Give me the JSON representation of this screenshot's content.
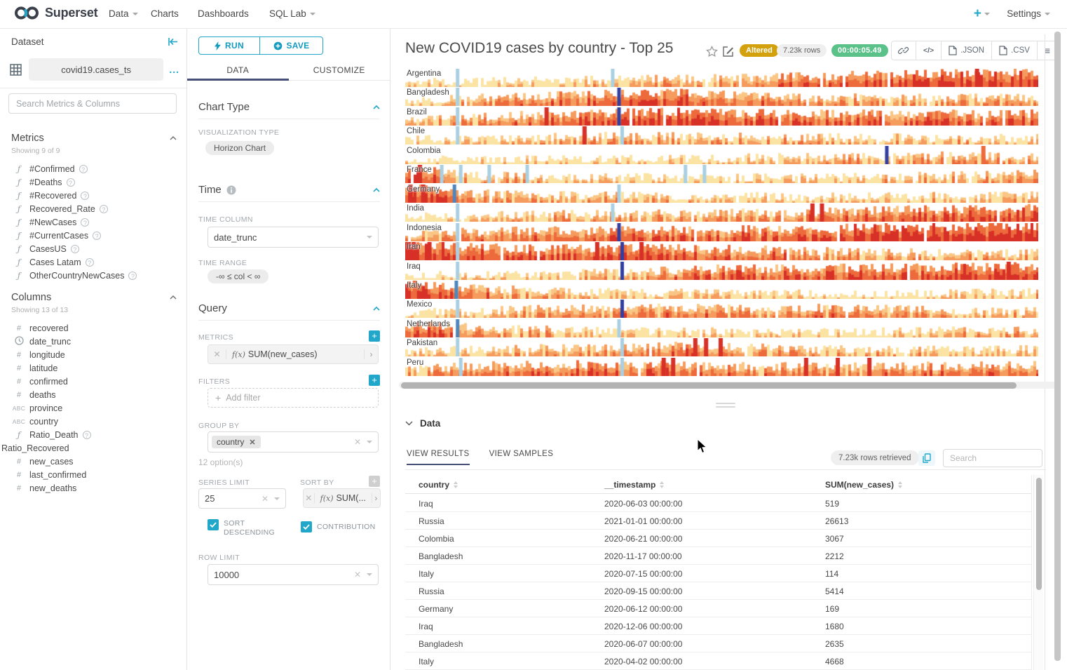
{
  "navbar": {
    "brand": "Superset",
    "items": [
      {
        "label": "Data",
        "caret": true
      },
      {
        "label": "Charts",
        "caret": false
      },
      {
        "label": "Dashboards",
        "caret": false
      },
      {
        "label": "SQL Lab",
        "caret": true
      }
    ],
    "plus_label": "+",
    "settings_label": "Settings"
  },
  "dataset_panel": {
    "title": "Dataset",
    "name": "covid19.cases_ts",
    "more_label": "...",
    "search_placeholder": "Search Metrics & Columns",
    "metrics": {
      "title": "Metrics",
      "showing": "Showing 9 of 9",
      "items": [
        "#Confirmed",
        "#Deaths",
        "#Recovered",
        "Recovered_Rate",
        "#NewCases",
        "#CurrentCases",
        "CasesUS",
        "Cases Latam",
        "OtherCountryNewCases"
      ]
    },
    "columns": {
      "title": "Columns",
      "showing": "Showing 13 of 13",
      "items": [
        {
          "name": "recovered",
          "type": "num"
        },
        {
          "name": "date_trunc",
          "type": "time"
        },
        {
          "name": "longitude",
          "type": "num"
        },
        {
          "name": "latitude",
          "type": "num"
        },
        {
          "name": "confirmed",
          "type": "num"
        },
        {
          "name": "deaths",
          "type": "num"
        },
        {
          "name": "province",
          "type": "text"
        },
        {
          "name": "country",
          "type": "text"
        },
        {
          "name": "Ratio_Death",
          "type": "func",
          "help": true
        },
        {
          "name": "Ratio_Recovered",
          "type": "none"
        },
        {
          "name": "new_cases",
          "type": "num"
        },
        {
          "name": "last_confirmed",
          "type": "num"
        },
        {
          "name": "new_deaths",
          "type": "num"
        }
      ]
    }
  },
  "controls": {
    "run_label": "RUN",
    "save_label": "SAVE",
    "tabs": [
      "DATA",
      "CUSTOMIZE"
    ],
    "chart_type": {
      "title": "Chart Type",
      "viz_label": "VISUALIZATION TYPE",
      "viz_value": "Horizon Chart"
    },
    "time": {
      "title": "Time",
      "col_label": "TIME COLUMN",
      "col_value": "date_trunc",
      "range_label": "TIME RANGE",
      "range_value": "-∞ ≤ col < ∞"
    },
    "query": {
      "title": "Query",
      "metrics_label": "METRICS",
      "metric_fx": "f(x)",
      "metric_value": "SUM(new_cases)",
      "filters_label": "FILTERS",
      "add_filter_label": "Add filter",
      "groupby_label": "GROUP BY",
      "groupby_tag": "country",
      "options_hint": "12 option(s)",
      "series_limit_label": "SERIES LIMIT",
      "series_limit_value": "25",
      "sortby_label": "SORT BY",
      "sortby_value": "SUM(...",
      "sort_desc_label": "SORT DESCENDING",
      "contribution_label": "CONTRIBUTION",
      "row_limit_label": "ROW LIMIT",
      "row_limit_value": "10000"
    }
  },
  "chart": {
    "title": "New COVID19 cases by country - Top 25",
    "badges": {
      "altered": "Altered",
      "rows": "7.23k rows",
      "duration": "00:00:05.49"
    },
    "toolbar": {
      "json_label": ".JSON",
      "csv_label": ".CSV",
      "code_label": "</>"
    }
  },
  "chart_data": {
    "type": "area",
    "subtype": "horizon",
    "title": "New COVID19 cases by country - Top 25",
    "palette": {
      "l0": "#FBE3A4",
      "l1": "#F9C686",
      "l2": "#F49B5D",
      "l3": "#EC6A3C",
      "l4": "#D73027",
      "lb": "#A9CFE3",
      "sb": "#4E86BE",
      "db": "#333FA0"
    },
    "countries": [
      {
        "name": "Argentina",
        "seed": 11,
        "profile": [
          [
            0,
            0.08
          ],
          [
            0.3,
            0.25
          ],
          [
            0.55,
            0.45
          ],
          [
            0.62,
            0.5
          ],
          [
            0.75,
            0.62
          ],
          [
            1,
            0.8
          ]
        ],
        "stripes": [
          [
            0.08,
            "lb"
          ],
          [
            0.325,
            "lb"
          ]
        ],
        "spikes": [
          [
            0.9,
            4
          ]
        ]
      },
      {
        "name": "Bangladesh",
        "seed": 22,
        "profile": [
          [
            0,
            0.15
          ],
          [
            0.15,
            0.42
          ],
          [
            0.3,
            0.6
          ],
          [
            0.45,
            0.65
          ],
          [
            0.55,
            0.5
          ],
          [
            0.65,
            0.35
          ],
          [
            0.8,
            0.3
          ],
          [
            1,
            0.35
          ]
        ],
        "stripes": [
          [
            0.08,
            "lb"
          ],
          [
            0.335,
            "db"
          ]
        ],
        "spikes": []
      },
      {
        "name": "Brazil",
        "seed": 33,
        "profile": [
          [
            0,
            0.15
          ],
          [
            0.2,
            0.5
          ],
          [
            0.4,
            0.7
          ],
          [
            0.6,
            0.6
          ],
          [
            0.8,
            0.55
          ],
          [
            1,
            0.6
          ]
        ],
        "stripes": [
          [
            0.08,
            "lb"
          ],
          [
            0.335,
            "db"
          ]
        ],
        "spikes": [
          [
            0.22,
            4
          ]
        ]
      },
      {
        "name": "Chile",
        "seed": 44,
        "profile": [
          [
            0,
            0.08
          ],
          [
            0.2,
            0.25
          ],
          [
            0.35,
            0.35
          ],
          [
            0.5,
            0.3
          ],
          [
            0.7,
            0.25
          ],
          [
            1,
            0.2
          ]
        ],
        "stripes": [
          [
            0.08,
            "lb"
          ],
          [
            0.34,
            "lb"
          ]
        ],
        "spikes": [
          [
            0.28,
            4
          ]
        ]
      },
      {
        "name": "Colombia",
        "seed": 55,
        "profile": [
          [
            0,
            0.05
          ],
          [
            0.3,
            0.1
          ],
          [
            0.5,
            0.18
          ],
          [
            0.7,
            0.3
          ],
          [
            0.85,
            0.35
          ],
          [
            1,
            0.3
          ]
        ],
        "stripes": [
          [
            0.758,
            "db"
          ]
        ],
        "spikes": [
          [
            0.91,
            3
          ]
        ]
      },
      {
        "name": "France",
        "seed": 66,
        "profile": [
          [
            0,
            0.7
          ],
          [
            0.05,
            0.55
          ],
          [
            0.1,
            0.3
          ],
          [
            0.3,
            0.18
          ],
          [
            0.6,
            0.12
          ],
          [
            0.9,
            0.3
          ],
          [
            1,
            0.5
          ]
        ],
        "stripes": [
          [
            0.055,
            "lb"
          ],
          [
            0.085,
            "lb"
          ],
          [
            0.13,
            "lb"
          ],
          [
            0.19,
            "lb"
          ],
          [
            0.44,
            "lb"
          ],
          [
            0.47,
            "lb"
          ]
        ],
        "spikes": [
          [
            0.02,
            4
          ]
        ]
      },
      {
        "name": "Germany",
        "seed": 77,
        "profile": [
          [
            0,
            0.85
          ],
          [
            0.06,
            0.68
          ],
          [
            0.1,
            0.45
          ],
          [
            0.2,
            0.3
          ],
          [
            0.4,
            0.22
          ],
          [
            0.7,
            0.18
          ],
          [
            1,
            0.25
          ]
        ],
        "stripes": [
          [
            0.075,
            "sb"
          ],
          [
            0.335,
            "lb"
          ]
        ],
        "spikes": [
          [
            0.005,
            4
          ],
          [
            0.025,
            4
          ]
        ]
      },
      {
        "name": "India",
        "seed": 88,
        "profile": [
          [
            0,
            0.08
          ],
          [
            0.25,
            0.3
          ],
          [
            0.45,
            0.35
          ],
          [
            0.6,
            0.4
          ],
          [
            0.75,
            0.55
          ],
          [
            0.9,
            0.65
          ],
          [
            1,
            0.75
          ]
        ],
        "stripes": [
          [
            0.08,
            "lb"
          ],
          [
            0.325,
            "lb"
          ]
        ],
        "spikes": [
          [
            0.64,
            4
          ],
          [
            0.655,
            4
          ]
        ]
      },
      {
        "name": "Indonesia",
        "seed": 99,
        "profile": [
          [
            0,
            0.3
          ],
          [
            0.2,
            0.5
          ],
          [
            0.4,
            0.55
          ],
          [
            0.6,
            0.6
          ],
          [
            0.8,
            0.75
          ],
          [
            1,
            0.85
          ]
        ],
        "stripes": [
          [
            0.08,
            "lb"
          ],
          [
            0.335,
            "db"
          ]
        ],
        "spikes": []
      },
      {
        "name": "Iran",
        "seed": 111,
        "profile": [
          [
            0,
            0.9
          ],
          [
            0.08,
            0.72
          ],
          [
            0.2,
            0.55
          ],
          [
            0.35,
            0.62
          ],
          [
            0.5,
            0.55
          ],
          [
            0.6,
            0.45
          ],
          [
            0.75,
            0.3
          ],
          [
            1,
            0.25
          ]
        ],
        "stripes": [
          [
            0.08,
            "lb"
          ],
          [
            0.34,
            "db"
          ]
        ],
        "spikes": [
          [
            0.01,
            4
          ],
          [
            0.035,
            4
          ],
          [
            0.3,
            4
          ],
          [
            0.37,
            4
          ]
        ]
      },
      {
        "name": "Iraq",
        "seed": 122,
        "profile": [
          [
            0,
            0.06
          ],
          [
            0.2,
            0.12
          ],
          [
            0.35,
            0.3
          ],
          [
            0.45,
            0.5
          ],
          [
            0.55,
            0.55
          ],
          [
            0.7,
            0.6
          ],
          [
            0.85,
            0.65
          ],
          [
            1,
            0.7
          ]
        ],
        "stripes": [
          [
            0.08,
            "lb"
          ],
          [
            0.34,
            "db"
          ]
        ],
        "spikes": [
          [
            0.95,
            4
          ]
        ]
      },
      {
        "name": "Italy",
        "seed": 133,
        "profile": [
          [
            0,
            0.75
          ],
          [
            0.08,
            0.6
          ],
          [
            0.15,
            0.4
          ],
          [
            0.3,
            0.25
          ],
          [
            0.5,
            0.15
          ],
          [
            0.8,
            0.1
          ],
          [
            1,
            0.22
          ]
        ],
        "stripes": [
          [
            0.078,
            "sb"
          ]
        ],
        "spikes": [
          [
            0.012,
            3
          ]
        ]
      },
      {
        "name": "Mexico",
        "seed": 144,
        "profile": [
          [
            0,
            0.1
          ],
          [
            0.2,
            0.35
          ],
          [
            0.4,
            0.45
          ],
          [
            0.55,
            0.4
          ],
          [
            0.7,
            0.45
          ],
          [
            0.85,
            0.3
          ],
          [
            1,
            0.2
          ]
        ],
        "stripes": [
          [
            0.08,
            "lb"
          ],
          [
            0.34,
            "db"
          ]
        ],
        "spikes": []
      },
      {
        "name": "Netherlands",
        "seed": 155,
        "profile": [
          [
            0,
            0.6
          ],
          [
            0.08,
            0.5
          ],
          [
            0.15,
            0.35
          ],
          [
            0.3,
            0.22
          ],
          [
            0.5,
            0.15
          ],
          [
            0.75,
            0.15
          ],
          [
            1,
            0.3
          ]
        ],
        "stripes": [
          [
            0.08,
            "sb"
          ],
          [
            0.335,
            "lb"
          ]
        ],
        "spikes": []
      },
      {
        "name": "Pakistan",
        "seed": 166,
        "profile": [
          [
            0,
            0.12
          ],
          [
            0.2,
            0.3
          ],
          [
            0.35,
            0.4
          ],
          [
            0.45,
            0.5
          ],
          [
            0.55,
            0.35
          ],
          [
            0.7,
            0.25
          ],
          [
            0.85,
            0.2
          ],
          [
            1,
            0.25
          ]
        ],
        "stripes": [
          [
            0.08,
            "lb"
          ],
          [
            0.34,
            "lb"
          ]
        ],
        "spikes": [
          [
            0.455,
            4
          ],
          [
            0.472,
            4
          ],
          [
            0.495,
            4
          ]
        ]
      },
      {
        "name": "Peru",
        "seed": 177,
        "profile": [
          [
            0,
            0.3
          ],
          [
            0.15,
            0.5
          ],
          [
            0.25,
            0.55
          ],
          [
            0.35,
            0.6
          ],
          [
            0.5,
            0.45
          ],
          [
            0.65,
            0.4
          ],
          [
            0.8,
            0.45
          ],
          [
            1,
            0.5
          ]
        ],
        "stripes": [
          [
            0.085,
            "lb"
          ],
          [
            0.34,
            "lb"
          ]
        ],
        "spikes": [
          [
            0.405,
            4
          ],
          [
            0.42,
            4
          ],
          [
            0.63,
            4
          ],
          [
            0.68,
            4
          ],
          [
            0.73,
            4
          ]
        ]
      }
    ]
  },
  "results": {
    "section_title": "Data",
    "tabs": [
      "VIEW RESULTS",
      "VIEW SAMPLES"
    ],
    "rows_badge": "7.23k rows retrieved",
    "search_placeholder": "Search",
    "columns": [
      "country",
      "__timestamp",
      "SUM(new_cases)"
    ],
    "rows": [
      [
        "Iraq",
        "2020-06-03 00:00:00",
        "519"
      ],
      [
        "Russia",
        "2021-01-01 00:00:00",
        "26613"
      ],
      [
        "Colombia",
        "2020-06-21 00:00:00",
        "3067"
      ],
      [
        "Bangladesh",
        "2020-11-17 00:00:00",
        "2212"
      ],
      [
        "Italy",
        "2020-07-15 00:00:00",
        "114"
      ],
      [
        "Russia",
        "2020-09-15 00:00:00",
        "5414"
      ],
      [
        "Germany",
        "2020-06-12 00:00:00",
        "169"
      ],
      [
        "Iraq",
        "2020-12-06 00:00:00",
        "1680"
      ],
      [
        "Bangladesh",
        "2020-06-07 00:00:00",
        "2635"
      ],
      [
        "Italy",
        "2020-04-02 00:00:00",
        "4668"
      ]
    ]
  }
}
